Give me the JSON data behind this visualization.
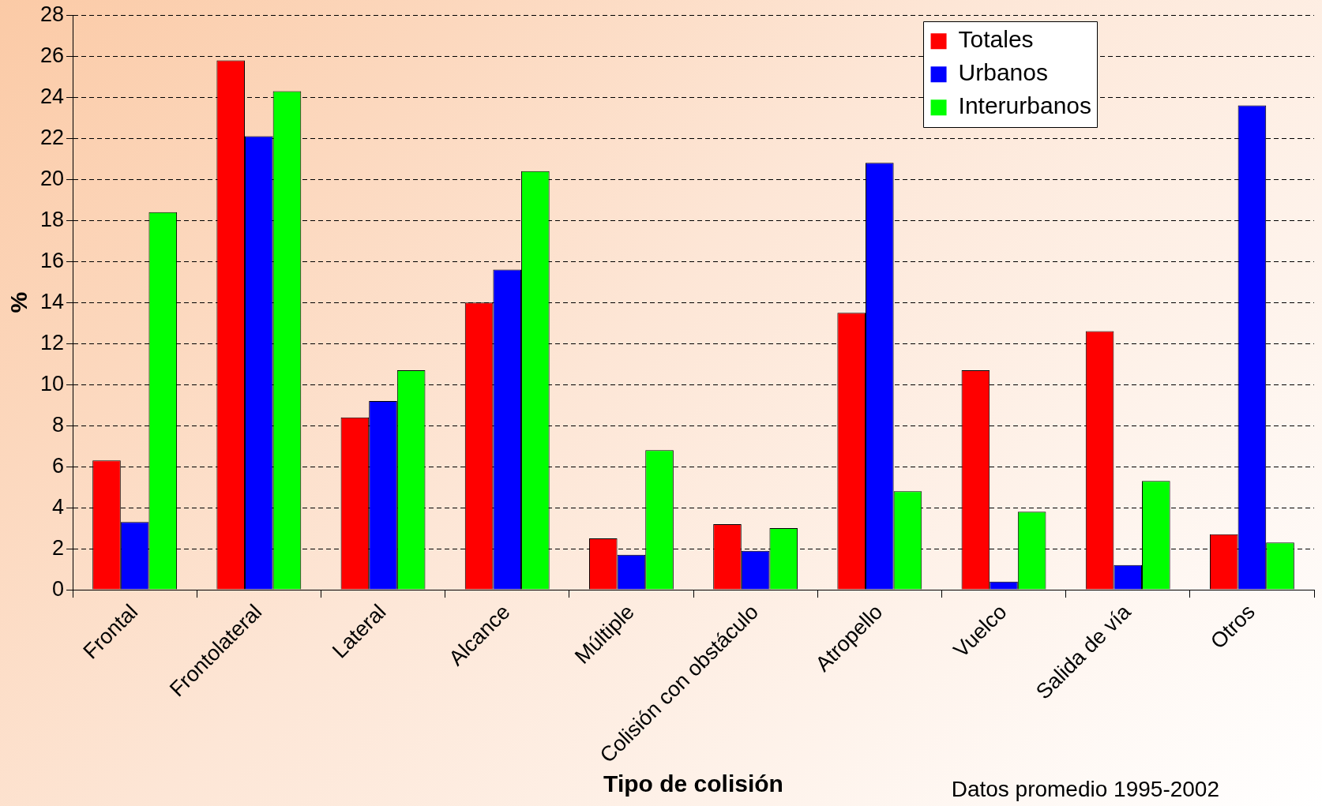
{
  "chart_data": {
    "type": "bar",
    "xlabel": "Tipo de colisión",
    "ylabel": "%",
    "categories": [
      "Frontal",
      "Frontolateral",
      "Lateral",
      "Alcance",
      "Múltiple",
      "Colisión con obstáculo",
      "Atropello",
      "Vuelco",
      "Salida de vía",
      "Otros"
    ],
    "series": [
      {
        "name": "Totales",
        "color": "#ff0000",
        "values": [
          6.3,
          25.8,
          8.4,
          14.0,
          2.5,
          3.2,
          13.5,
          10.7,
          12.6,
          2.7
        ]
      },
      {
        "name": "Urbanos",
        "color": "#0000ff",
        "values": [
          3.3,
          22.1,
          9.2,
          15.6,
          1.7,
          1.9,
          20.8,
          0.4,
          1.2,
          23.6
        ]
      },
      {
        "name": "Interurbanos",
        "color": "#00ff00",
        "values": [
          18.4,
          24.3,
          10.7,
          20.4,
          6.8,
          3.0,
          4.8,
          3.8,
          5.3,
          2.3
        ]
      }
    ],
    "ylim": [
      0,
      28
    ],
    "yticks": [
      0,
      2,
      4,
      6,
      8,
      10,
      12,
      14,
      16,
      18,
      20,
      22,
      24,
      26,
      28
    ],
    "grid": "y",
    "legend": "top right",
    "annotations": [
      "Datos promedio 1995-2002"
    ]
  }
}
